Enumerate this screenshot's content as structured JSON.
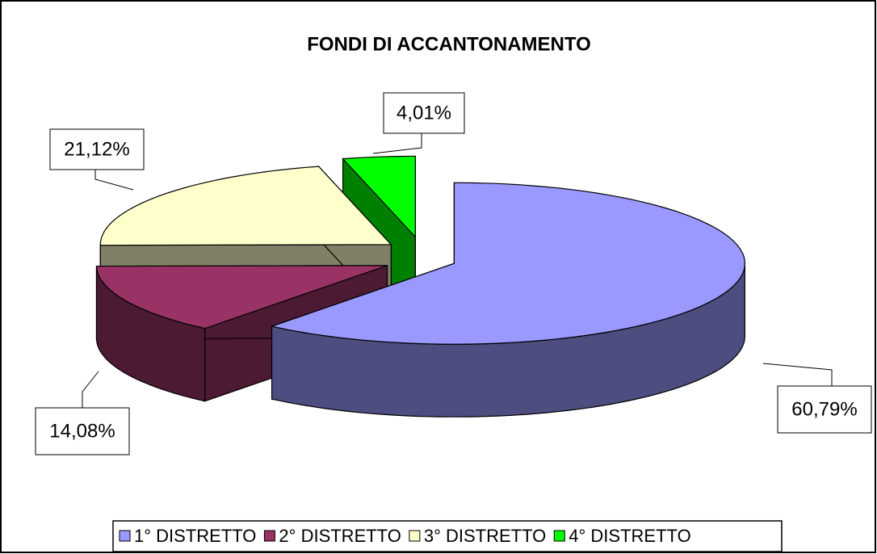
{
  "chart_data": {
    "type": "pie",
    "title": "FONDI DI ACCANTONAMENTO",
    "categories": [
      "1° DISTRETTO",
      "2° DISTRETTO",
      "3° DISTRETTO",
      "4° DISTRETTO"
    ],
    "values": [
      60.79,
      14.08,
      21.12,
      4.01
    ],
    "value_labels": [
      "60,79%",
      "14,08%",
      "21,12%",
      "4,01%"
    ],
    "colors": [
      "#9999ff",
      "#993366",
      "#ffffcc",
      "#00ff00"
    ],
    "legend": "bottom"
  }
}
